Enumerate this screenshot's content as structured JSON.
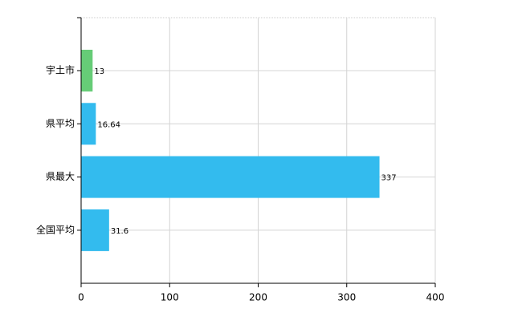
{
  "chart_data": {
    "type": "bar",
    "orientation": "horizontal",
    "categories": [
      "宇土市",
      "県平均",
      "県最大",
      "全国平均"
    ],
    "values": [
      13,
      16.64,
      337,
      31.6
    ],
    "colors": [
      "#66cc77",
      "#33bbee",
      "#33bbee",
      "#33bbee"
    ],
    "xlim": [
      0,
      400
    ],
    "xticks": [
      0,
      100,
      200,
      300,
      400
    ],
    "grid": true
  }
}
